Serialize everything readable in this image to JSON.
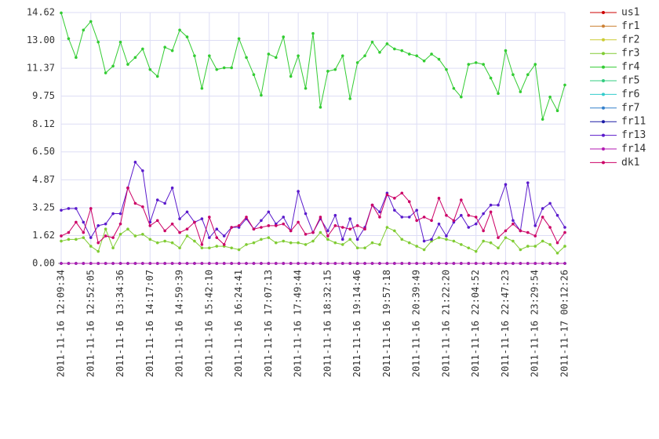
{
  "chart_data": {
    "type": "line",
    "categories": [
      "2011-11-16 12:09:34",
      null,
      null,
      null,
      "2011-11-16 12:52:05",
      null,
      null,
      null,
      "2011-11-16 13:34:36",
      null,
      null,
      null,
      "2011-11-16 14:17:07",
      null,
      null,
      null,
      "2011-11-16 14:59:39",
      null,
      null,
      null,
      "2011-11-16 15:42:10",
      null,
      null,
      null,
      "2011-11-16 16:24:41",
      null,
      null,
      null,
      "2011-11-16 17:07:13",
      null,
      null,
      null,
      "2011-11-16 17:49:44",
      null,
      null,
      null,
      "2011-11-16 18:32:15",
      null,
      null,
      null,
      "2011-11-16 19:14:46",
      null,
      null,
      null,
      "2011-11-16 19:57:18",
      null,
      null,
      null,
      "2011-11-16 20:39:49",
      null,
      null,
      null,
      "2011-11-16 21:22:20",
      null,
      null,
      null,
      "2011-11-16 22:04:52",
      null,
      null,
      null,
      "2011-11-16 22:47:23",
      null,
      null,
      null,
      "2011-11-16 23:29:54",
      null,
      null,
      null,
      "2011-11-17 00:12:26"
    ],
    "ylim": [
      0,
      14.62
    ],
    "yticks": [
      {
        "value": 0,
        "label": "0.00"
      },
      1.62,
      3.25,
      4.87,
      {
        "value": 6.5,
        "label": "6.50"
      },
      8.12,
      9.75,
      11.37,
      {
        "value": 13,
        "label": "13.00"
      },
      14.62
    ],
    "grid": true,
    "legend": "right",
    "series": [
      {
        "name": "us1",
        "color": "#cc0000",
        "values": [
          0,
          0,
          0,
          0,
          0,
          0,
          0,
          0,
          0,
          0,
          0,
          0,
          0,
          0,
          0,
          0,
          0,
          0,
          0,
          0,
          0,
          0,
          0,
          0,
          0,
          0,
          0,
          0,
          0,
          0,
          0,
          0,
          0,
          0,
          0,
          0,
          0,
          0,
          0,
          0,
          0,
          0,
          0,
          0,
          0,
          0,
          0,
          0,
          0,
          0,
          0,
          0,
          0,
          0,
          0,
          0,
          0,
          0,
          0,
          0,
          0,
          0,
          0,
          0,
          0,
          0,
          0,
          0,
          0
        ]
      },
      {
        "name": "fr1",
        "color": "#cc8033",
        "values": [
          0,
          0,
          0,
          0,
          0,
          0,
          0,
          0,
          0,
          0,
          0,
          0,
          0,
          0,
          0,
          0,
          0,
          0,
          0,
          0,
          0,
          0,
          0,
          0,
          0,
          0,
          0,
          0,
          0,
          0,
          0,
          0,
          0,
          0,
          0,
          0,
          0,
          0,
          0,
          0,
          0,
          0,
          0,
          0,
          0,
          0,
          0,
          0,
          0,
          0,
          0,
          0,
          0,
          0,
          0,
          0,
          0,
          0,
          0,
          0,
          0,
          0,
          0,
          0,
          0,
          0,
          0,
          0,
          0
        ]
      },
      {
        "name": "fr2",
        "color": "#cccc33",
        "values": [
          0,
          0,
          0,
          0,
          0,
          0,
          0,
          0,
          0,
          0,
          0,
          0,
          0,
          0,
          0,
          0,
          0,
          0,
          0,
          0,
          0,
          0,
          0,
          0,
          0,
          0,
          0,
          0,
          0,
          0,
          0,
          0,
          0,
          0,
          0,
          0,
          0,
          0,
          0,
          0,
          0,
          0,
          0,
          0,
          0,
          0,
          0,
          0,
          0,
          0,
          0,
          0,
          0,
          0,
          0,
          0,
          0,
          0,
          0,
          0,
          0,
          0,
          0,
          0,
          0,
          0,
          0,
          0,
          0
        ]
      },
      {
        "name": "fr3",
        "color": "#80cc33",
        "values": [
          1.3,
          1.4,
          1.4,
          1.5,
          1.0,
          0.7,
          2.0,
          0.9,
          1.7,
          2.0,
          1.6,
          1.7,
          1.4,
          1.2,
          1.3,
          1.2,
          0.9,
          1.6,
          1.3,
          0.9,
          0.9,
          1.0,
          1.0,
          0.9,
          0.8,
          1.1,
          1.2,
          1.4,
          1.5,
          1.2,
          1.3,
          1.2,
          1.2,
          1.1,
          1.3,
          1.8,
          1.4,
          1.2,
          1.1,
          1.4,
          0.9,
          0.9,
          1.2,
          1.1,
          2.1,
          1.9,
          1.4,
          1.2,
          1.0,
          0.8,
          1.3,
          1.5,
          1.4,
          1.3,
          1.1,
          0.9,
          0.7,
          1.3,
          1.2,
          0.9,
          1.5,
          1.3,
          0.8,
          1.0,
          1.0,
          1.3,
          1.1,
          0.6,
          1.0
        ]
      },
      {
        "name": "fr4",
        "color": "#33cc33",
        "values": [
          14.6,
          13.1,
          12.0,
          13.6,
          14.1,
          12.9,
          11.1,
          11.5,
          12.9,
          11.6,
          12.0,
          12.5,
          11.3,
          10.9,
          12.6,
          12.4,
          13.6,
          13.2,
          12.1,
          10.2,
          12.1,
          11.3,
          11.4,
          11.4,
          13.1,
          12.0,
          11.0,
          9.8,
          12.2,
          12.0,
          13.2,
          10.9,
          12.1,
          10.2,
          13.4,
          9.1,
          11.2,
          11.3,
          12.1,
          9.6,
          11.7,
          12.1,
          12.9,
          12.3,
          12.8,
          12.5,
          12.4,
          12.2,
          12.1,
          11.8,
          12.2,
          11.9,
          11.3,
          10.2,
          9.7,
          11.6,
          11.7,
          11.6,
          10.8,
          9.9,
          12.4,
          11.0,
          10.0,
          11.0,
          11.6,
          8.4,
          9.7,
          8.9,
          10.4
        ]
      },
      {
        "name": "fr5",
        "color": "#33cc80",
        "values": [
          0,
          0,
          0,
          0,
          0,
          0,
          0,
          0,
          0,
          0,
          0,
          0,
          0,
          0,
          0,
          0,
          0,
          0,
          0,
          0,
          0,
          0,
          0,
          0,
          0,
          0,
          0,
          0,
          0,
          0,
          0,
          0,
          0,
          0,
          0,
          0,
          0,
          0,
          0,
          0,
          0,
          0,
          0,
          0,
          0,
          0,
          0,
          0,
          0,
          0,
          0,
          0,
          0,
          0,
          0,
          0,
          0,
          0,
          0,
          0,
          0,
          0,
          0,
          0,
          0,
          0,
          0,
          0,
          0
        ]
      },
      {
        "name": "fr6",
        "color": "#33cccc",
        "values": [
          0,
          0,
          0,
          0,
          0,
          0,
          0,
          0,
          0,
          0,
          0,
          0,
          0,
          0,
          0,
          0,
          0,
          0,
          0,
          0,
          0,
          0,
          0,
          0,
          0,
          0,
          0,
          0,
          0,
          0,
          0,
          0,
          0,
          0,
          0,
          0,
          0,
          0,
          0,
          0,
          0,
          0,
          0,
          0,
          0,
          0,
          0,
          0,
          0,
          0,
          0,
          0,
          0,
          0,
          0,
          0,
          0,
          0,
          0,
          0,
          0,
          0,
          0,
          0,
          0,
          0,
          0,
          0,
          0
        ]
      },
      {
        "name": "fr7",
        "color": "#3380cc",
        "values": [
          0,
          0,
          0,
          0,
          0,
          0,
          0,
          0,
          0,
          0,
          0,
          0,
          0,
          0,
          0,
          0,
          0,
          0,
          0,
          0,
          0,
          0,
          0,
          0,
          0,
          0,
          0,
          0,
          0,
          0,
          0,
          0,
          0,
          0,
          0,
          0,
          0,
          0,
          0,
          0,
          0,
          0,
          0,
          0,
          0,
          0,
          0,
          0,
          0,
          0,
          0,
          0,
          0,
          0,
          0,
          0,
          0,
          0,
          0,
          0,
          0,
          0,
          0,
          0,
          0,
          0,
          0,
          0,
          0
        ]
      },
      {
        "name": "fr11",
        "color": "#1a1aa6",
        "values": [
          0,
          0,
          0,
          0,
          0,
          0,
          0,
          0,
          0,
          0,
          0,
          0,
          0,
          0,
          0,
          0,
          0,
          0,
          0,
          0,
          0,
          0,
          0,
          0,
          0,
          0,
          0,
          0,
          0,
          0,
          0,
          0,
          0,
          0,
          0,
          0,
          0,
          0,
          0,
          0,
          0,
          0,
          0,
          0,
          0,
          0,
          0,
          0,
          0,
          0,
          0,
          0,
          0,
          0,
          0,
          0,
          0,
          0,
          0,
          0,
          0,
          0,
          0,
          0,
          0,
          0,
          0,
          0,
          0
        ]
      },
      {
        "name": "fr13",
        "color": "#5a1acc",
        "values": [
          3.1,
          3.2,
          3.2,
          2.4,
          1.5,
          2.2,
          2.3,
          2.9,
          2.9,
          4.4,
          5.9,
          5.4,
          2.4,
          3.7,
          3.5,
          4.4,
          2.6,
          3.0,
          2.4,
          2.6,
          1.5,
          2.0,
          1.6,
          2.1,
          2.1,
          2.6,
          2.0,
          2.5,
          3.0,
          2.3,
          2.7,
          1.9,
          4.2,
          2.9,
          1.8,
          2.6,
          1.9,
          2.8,
          1.4,
          2.6,
          1.4,
          2.1,
          3.4,
          3.0,
          4.1,
          3.1,
          2.7,
          2.7,
          3.1,
          1.3,
          1.4,
          2.3,
          1.6,
          2.4,
          2.8,
          2.1,
          2.3,
          2.9,
          3.4,
          3.4,
          4.6,
          2.5,
          1.9,
          4.7,
          2.2,
          3.2,
          3.5,
          2.8,
          2.1
        ]
      },
      {
        "name": "fr14",
        "color": "#b31ab3",
        "values": [
          0,
          0,
          0,
          0,
          0,
          0,
          0,
          0,
          0,
          0,
          0,
          0,
          0,
          0,
          0,
          0,
          0,
          0,
          0,
          0,
          0,
          0,
          0,
          0,
          0,
          0,
          0,
          0,
          0,
          0,
          0,
          0,
          0,
          0,
          0,
          0,
          0,
          0,
          0,
          0,
          0,
          0,
          0,
          0,
          0,
          0,
          0,
          0,
          0,
          0,
          0,
          0,
          0,
          0,
          0,
          0,
          0,
          0,
          0,
          0,
          0,
          0,
          0,
          0,
          0,
          0,
          0,
          0,
          0
        ]
      },
      {
        "name": "dk1",
        "color": "#cc0066",
        "values": [
          1.6,
          1.8,
          2.4,
          1.8,
          3.2,
          1.2,
          1.6,
          1.5,
          2.3,
          4.4,
          3.5,
          3.3,
          2.2,
          2.5,
          1.9,
          2.3,
          1.8,
          2.0,
          2.4,
          1.1,
          2.7,
          1.5,
          1.1,
          2.1,
          2.2,
          2.7,
          2.0,
          2.1,
          2.2,
          2.2,
          2.3,
          1.9,
          2.4,
          1.7,
          1.8,
          2.7,
          1.6,
          2.2,
          2.1,
          2.0,
          2.2,
          2.0,
          3.4,
          2.7,
          4.0,
          3.8,
          4.1,
          3.6,
          2.5,
          2.7,
          2.5,
          3.8,
          2.8,
          2.5,
          3.7,
          2.8,
          2.7,
          1.9,
          3.0,
          1.5,
          1.9,
          2.3,
          1.9,
          1.8,
          1.6,
          2.7,
          2.1,
          1.2,
          1.8
        ]
      }
    ]
  }
}
